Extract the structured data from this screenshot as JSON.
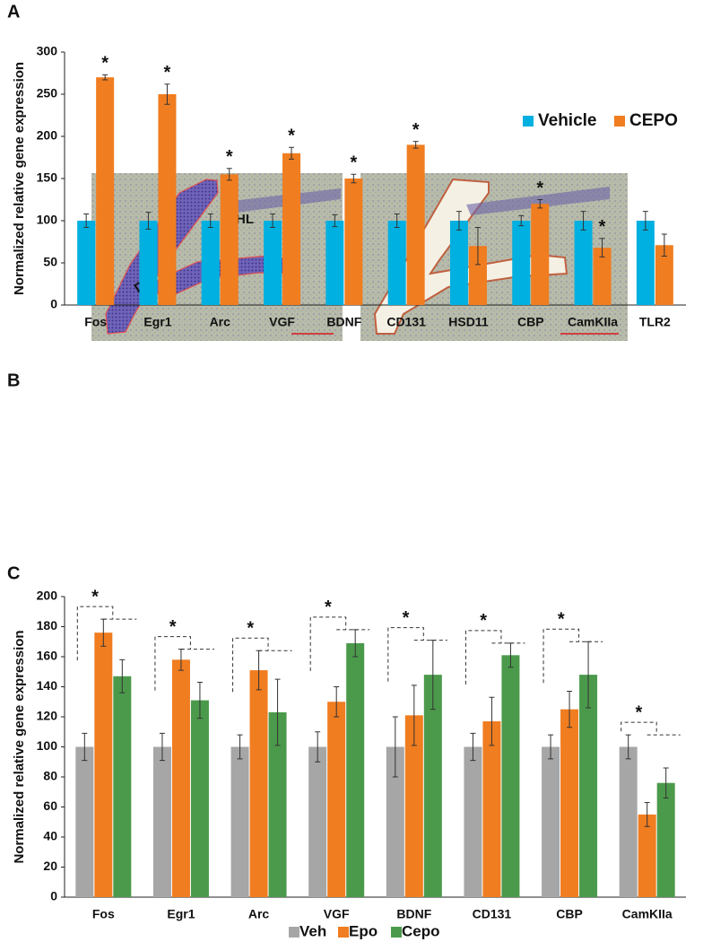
{
  "panel_labels": [
    "A",
    "B",
    "C"
  ],
  "image_labels": [
    "DG",
    "HL"
  ],
  "chart_data": [
    {
      "type": "bar",
      "ylabel": "Normalized relative gene expression",
      "categories": [
        "Fos",
        "Egr1",
        "Arc",
        "VGF",
        "BDNF",
        "CD131",
        "HSD11",
        "CBP",
        "CamKIIa",
        "TLR2"
      ],
      "series": [
        {
          "name": "Vehicle",
          "color": "#00b0e0",
          "values": [
            100,
            100,
            100,
            100,
            100,
            100,
            100,
            100,
            100,
            100
          ],
          "errors": [
            8,
            10,
            8,
            8,
            7,
            8,
            11,
            6,
            11,
            11
          ]
        },
        {
          "name": "CEPO",
          "color": "#f07d20",
          "values": [
            270,
            250,
            155,
            180,
            150,
            190,
            70,
            120,
            68,
            71
          ],
          "errors": [
            3,
            12,
            7,
            7,
            5,
            4,
            22,
            5,
            11,
            13
          ]
        }
      ],
      "significance": [
        "*",
        "*",
        "*",
        "*",
        "*",
        "*",
        null,
        "*",
        "*",
        null
      ],
      "ylim": [
        0,
        300
      ],
      "yticks": [
        0,
        50,
        100,
        150,
        200,
        250,
        300
      ],
      "grid": false,
      "legend": "right"
    },
    {
      "type": "bar",
      "ylabel": "Normalized relative gene expression",
      "categories": [
        "Fos",
        "Egr1",
        "Arc",
        "VGF",
        "BDNF",
        "CD131",
        "CBP",
        "CamKIIa"
      ],
      "series": [
        {
          "name": "Veh",
          "color": "#a6a6a6",
          "values": [
            100,
            100,
            100,
            100,
            100,
            100,
            100,
            100
          ],
          "errors": [
            9,
            9,
            8,
            10,
            20,
            9,
            8,
            8
          ]
        },
        {
          "name": "Epo",
          "color": "#f07d20",
          "values": [
            176,
            158,
            151,
            130,
            121,
            117,
            125,
            55
          ],
          "errors": [
            9,
            7,
            13,
            10,
            20,
            16,
            12,
            8
          ]
        },
        {
          "name": "Cepo",
          "color": "#4b9a4b",
          "values": [
            147,
            131,
            123,
            169,
            148,
            161,
            148,
            76
          ],
          "errors": [
            11,
            12,
            22,
            9,
            23,
            8,
            22,
            10
          ]
        }
      ],
      "significance": [
        "*",
        "*",
        "*",
        "*",
        "*",
        "*",
        "*",
        "*"
      ],
      "ylim": [
        0,
        200
      ],
      "yticks": [
        0,
        20,
        40,
        60,
        80,
        100,
        120,
        140,
        160,
        180,
        200
      ],
      "grid": false,
      "legend": "bottom"
    }
  ]
}
